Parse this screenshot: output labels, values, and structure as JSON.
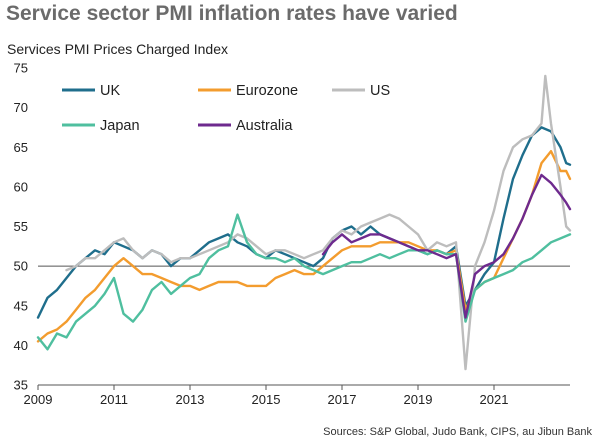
{
  "header": {
    "title": "Service sector PMI inflation rates have varied",
    "subtitle": "Services PMI Prices Charged Index",
    "source": "Sources: S&P Global, Judo Bank, CIPS, au Jibun Bank"
  },
  "chart_data": {
    "type": "line",
    "title": "Service sector PMI inflation rates have varied",
    "ylabel": "Services PMI Prices Charged Index",
    "xlabel": "",
    "xlim": [
      2009.0,
      2023.0
    ],
    "ylim": [
      35,
      75
    ],
    "yticks": [
      35,
      40,
      45,
      50,
      55,
      60,
      65,
      70,
      75
    ],
    "xticks": [
      2009,
      2011,
      2013,
      2015,
      2017,
      2019,
      2021
    ],
    "xtick_labels": [
      "2009",
      "2011",
      "2013",
      "2015",
      "2017",
      "2019",
      "2021"
    ],
    "baseline": 50,
    "grid": false,
    "legend_position": "top",
    "series": [
      {
        "name": "UK",
        "color": "#1f6e8c",
        "points": [
          [
            2009.0,
            43.5
          ],
          [
            2009.25,
            46
          ],
          [
            2009.5,
            47
          ],
          [
            2009.75,
            48.5
          ],
          [
            2010.0,
            50
          ],
          [
            2010.25,
            51
          ],
          [
            2010.5,
            52
          ],
          [
            2010.75,
            51.5
          ],
          [
            2011.0,
            53
          ],
          [
            2011.25,
            52.5
          ],
          [
            2011.5,
            52
          ],
          [
            2011.75,
            51
          ],
          [
            2012.0,
            52
          ],
          [
            2012.25,
            51.5
          ],
          [
            2012.5,
            50
          ],
          [
            2012.75,
            51
          ],
          [
            2013.0,
            51
          ],
          [
            2013.25,
            52
          ],
          [
            2013.5,
            53
          ],
          [
            2013.75,
            53.5
          ],
          [
            2014.0,
            54
          ],
          [
            2014.25,
            53
          ],
          [
            2014.5,
            52.5
          ],
          [
            2014.75,
            51.5
          ],
          [
            2015.0,
            51
          ],
          [
            2015.25,
            52
          ],
          [
            2015.5,
            51.5
          ],
          [
            2015.75,
            51
          ],
          [
            2016.0,
            50.5
          ],
          [
            2016.25,
            50
          ],
          [
            2016.5,
            51
          ],
          [
            2016.75,
            53.5
          ],
          [
            2017.0,
            54.5
          ],
          [
            2017.25,
            55
          ],
          [
            2017.5,
            54
          ],
          [
            2017.75,
            55
          ],
          [
            2018.0,
            54
          ],
          [
            2018.25,
            53.5
          ],
          [
            2018.5,
            53
          ],
          [
            2018.75,
            52.5
          ],
          [
            2019.0,
            52
          ],
          [
            2019.25,
            51.5
          ],
          [
            2019.5,
            52
          ],
          [
            2019.75,
            51.5
          ],
          [
            2020.0,
            52.5
          ],
          [
            2020.25,
            45
          ],
          [
            2020.5,
            47
          ],
          [
            2020.75,
            49
          ],
          [
            2021.0,
            50.5
          ],
          [
            2021.25,
            56
          ],
          [
            2021.5,
            61
          ],
          [
            2021.75,
            64
          ],
          [
            2022.0,
            66.5
          ],
          [
            2022.25,
            67.5
          ],
          [
            2022.5,
            67
          ],
          [
            2022.75,
            65
          ],
          [
            2022.9,
            63
          ],
          [
            2023.0,
            62.8
          ]
        ]
      },
      {
        "name": "Eurozone",
        "color": "#f39c2e",
        "points": [
          [
            2009.0,
            40.5
          ],
          [
            2009.25,
            41.5
          ],
          [
            2009.5,
            42
          ],
          [
            2009.75,
            43
          ],
          [
            2010.0,
            44.5
          ],
          [
            2010.25,
            46
          ],
          [
            2010.5,
            47
          ],
          [
            2010.75,
            48.5
          ],
          [
            2011.0,
            50
          ],
          [
            2011.25,
            51
          ],
          [
            2011.5,
            50
          ],
          [
            2011.75,
            49
          ],
          [
            2012.0,
            49
          ],
          [
            2012.25,
            48.5
          ],
          [
            2012.5,
            48
          ],
          [
            2012.75,
            47.5
          ],
          [
            2013.0,
            47.5
          ],
          [
            2013.25,
            47
          ],
          [
            2013.5,
            47.5
          ],
          [
            2013.75,
            48
          ],
          [
            2014.0,
            48
          ],
          [
            2014.25,
            48
          ],
          [
            2014.5,
            47.5
          ],
          [
            2014.75,
            47.5
          ],
          [
            2015.0,
            47.5
          ],
          [
            2015.25,
            48.5
          ],
          [
            2015.5,
            49
          ],
          [
            2015.75,
            49.5
          ],
          [
            2016.0,
            49
          ],
          [
            2016.25,
            49
          ],
          [
            2016.5,
            50
          ],
          [
            2016.75,
            51
          ],
          [
            2017.0,
            52
          ],
          [
            2017.25,
            52.5
          ],
          [
            2017.5,
            52.5
          ],
          [
            2017.75,
            52.5
          ],
          [
            2018.0,
            53
          ],
          [
            2018.25,
            53
          ],
          [
            2018.5,
            53
          ],
          [
            2018.75,
            53
          ],
          [
            2019.0,
            52.5
          ],
          [
            2019.25,
            52
          ],
          [
            2019.5,
            52
          ],
          [
            2019.75,
            51.5
          ],
          [
            2020.0,
            52
          ],
          [
            2020.25,
            44.5
          ],
          [
            2020.5,
            47
          ],
          [
            2020.75,
            48
          ],
          [
            2021.0,
            48.5
          ],
          [
            2021.25,
            51
          ],
          [
            2021.5,
            53.5
          ],
          [
            2021.75,
            56
          ],
          [
            2022.0,
            59
          ],
          [
            2022.25,
            63
          ],
          [
            2022.5,
            64.5
          ],
          [
            2022.75,
            62
          ],
          [
            2022.9,
            62
          ],
          [
            2023.0,
            61
          ]
        ]
      },
      {
        "name": "US",
        "color": "#bdbdbd",
        "points": [
          [
            2009.75,
            49.5
          ],
          [
            2010.0,
            50
          ],
          [
            2010.25,
            51
          ],
          [
            2010.5,
            51
          ],
          [
            2010.75,
            52
          ],
          [
            2011.0,
            53
          ],
          [
            2011.25,
            53.5
          ],
          [
            2011.5,
            52
          ],
          [
            2011.75,
            51
          ],
          [
            2012.0,
            52
          ],
          [
            2012.25,
            51.5
          ],
          [
            2012.5,
            50.5
          ],
          [
            2012.75,
            51
          ],
          [
            2013.0,
            51
          ],
          [
            2013.25,
            51.5
          ],
          [
            2013.5,
            52
          ],
          [
            2013.75,
            52.5
          ],
          [
            2014.0,
            53
          ],
          [
            2014.25,
            54
          ],
          [
            2014.5,
            53.5
          ],
          [
            2014.75,
            52.5
          ],
          [
            2015.0,
            51.5
          ],
          [
            2015.25,
            52
          ],
          [
            2015.5,
            52
          ],
          [
            2015.75,
            51.5
          ],
          [
            2016.0,
            51
          ],
          [
            2016.25,
            51.5
          ],
          [
            2016.5,
            52
          ],
          [
            2016.75,
            53.5
          ],
          [
            2017.0,
            54.5
          ],
          [
            2017.25,
            54
          ],
          [
            2017.5,
            55
          ],
          [
            2017.75,
            55.5
          ],
          [
            2018.0,
            56
          ],
          [
            2018.25,
            56.5
          ],
          [
            2018.5,
            56
          ],
          [
            2018.75,
            55
          ],
          [
            2019.0,
            54
          ],
          [
            2019.25,
            52
          ],
          [
            2019.5,
            53
          ],
          [
            2019.75,
            52.5
          ],
          [
            2020.0,
            53
          ],
          [
            2020.25,
            37
          ],
          [
            2020.5,
            50
          ],
          [
            2020.75,
            53
          ],
          [
            2021.0,
            57
          ],
          [
            2021.25,
            62
          ],
          [
            2021.5,
            65
          ],
          [
            2021.75,
            66
          ],
          [
            2022.0,
            66.5
          ],
          [
            2022.25,
            68
          ],
          [
            2022.35,
            74
          ],
          [
            2022.5,
            68
          ],
          [
            2022.75,
            60
          ],
          [
            2022.9,
            55
          ],
          [
            2023.0,
            54.5
          ]
        ]
      },
      {
        "name": "Japan",
        "color": "#4fbf9f",
        "points": [
          [
            2009.0,
            41
          ],
          [
            2009.25,
            39.5
          ],
          [
            2009.5,
            41.5
          ],
          [
            2009.75,
            41
          ],
          [
            2010.0,
            43
          ],
          [
            2010.25,
            44
          ],
          [
            2010.5,
            45
          ],
          [
            2010.75,
            46.5
          ],
          [
            2011.0,
            48.5
          ],
          [
            2011.25,
            44
          ],
          [
            2011.5,
            43
          ],
          [
            2011.75,
            44.5
          ],
          [
            2012.0,
            47
          ],
          [
            2012.25,
            48
          ],
          [
            2012.5,
            46.5
          ],
          [
            2012.75,
            47.5
          ],
          [
            2013.0,
            48.5
          ],
          [
            2013.25,
            49
          ],
          [
            2013.5,
            51
          ],
          [
            2013.75,
            52
          ],
          [
            2014.0,
            52.5
          ],
          [
            2014.25,
            56.5
          ],
          [
            2014.5,
            53
          ],
          [
            2014.75,
            51.5
          ],
          [
            2015.0,
            51
          ],
          [
            2015.25,
            51
          ],
          [
            2015.5,
            50.5
          ],
          [
            2015.75,
            51
          ],
          [
            2016.0,
            50
          ],
          [
            2016.25,
            49.5
          ],
          [
            2016.5,
            49
          ],
          [
            2016.75,
            49.5
          ],
          [
            2017.0,
            50
          ],
          [
            2017.25,
            50.5
          ],
          [
            2017.5,
            50.5
          ],
          [
            2017.75,
            51
          ],
          [
            2018.0,
            51.5
          ],
          [
            2018.25,
            51
          ],
          [
            2018.5,
            51.5
          ],
          [
            2018.75,
            52
          ],
          [
            2019.0,
            52
          ],
          [
            2019.25,
            51.5
          ],
          [
            2019.5,
            52
          ],
          [
            2019.75,
            51.5
          ],
          [
            2020.0,
            51.5
          ],
          [
            2020.25,
            43
          ],
          [
            2020.5,
            47
          ],
          [
            2020.75,
            48
          ],
          [
            2021.0,
            48.5
          ],
          [
            2021.25,
            49
          ],
          [
            2021.5,
            49.5
          ],
          [
            2021.75,
            50.5
          ],
          [
            2022.0,
            51
          ],
          [
            2022.25,
            52
          ],
          [
            2022.5,
            53
          ],
          [
            2022.75,
            53.5
          ],
          [
            2023.0,
            54
          ]
        ]
      },
      {
        "name": "Australia",
        "color": "#6e2a8e",
        "points": [
          [
            2016.5,
            51.5
          ],
          [
            2016.75,
            53
          ],
          [
            2017.0,
            54
          ],
          [
            2017.25,
            53
          ],
          [
            2017.5,
            53.5
          ],
          [
            2017.75,
            54
          ],
          [
            2018.0,
            54
          ],
          [
            2018.25,
            53.5
          ],
          [
            2018.5,
            53
          ],
          [
            2018.75,
            52.5
          ],
          [
            2019.0,
            52
          ],
          [
            2019.25,
            52
          ],
          [
            2019.5,
            51.5
          ],
          [
            2019.75,
            51
          ],
          [
            2020.0,
            51.5
          ],
          [
            2020.25,
            43.5
          ],
          [
            2020.5,
            49
          ],
          [
            2020.75,
            50
          ],
          [
            2021.0,
            50.5
          ],
          [
            2021.25,
            51.5
          ],
          [
            2021.5,
            53.5
          ],
          [
            2021.75,
            56
          ],
          [
            2022.0,
            59
          ],
          [
            2022.25,
            61.5
          ],
          [
            2022.5,
            60.5
          ],
          [
            2022.75,
            59
          ],
          [
            2022.9,
            58
          ],
          [
            2023.0,
            57.2
          ]
        ]
      }
    ]
  }
}
